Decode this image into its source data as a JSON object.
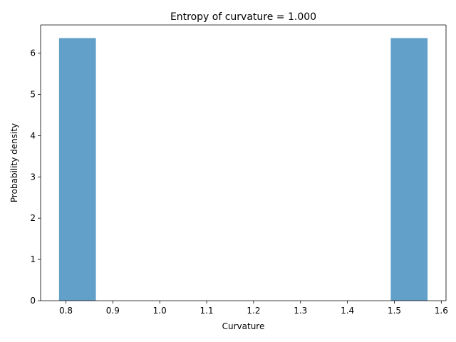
{
  "chart_data": {
    "type": "bar",
    "title": "Entropy of curvature = 1.000",
    "xlabel": "Curvature",
    "ylabel": "Probability density",
    "bins": [
      {
        "x0": 0.7854,
        "x1": 0.8639,
        "density": 6.366
      },
      {
        "x0": 0.8639,
        "x1": 0.9425,
        "density": 0
      },
      {
        "x0": 0.9425,
        "x1": 1.021,
        "density": 0
      },
      {
        "x0": 1.021,
        "x1": 1.0996,
        "density": 0
      },
      {
        "x0": 1.0996,
        "x1": 1.1781,
        "density": 0
      },
      {
        "x0": 1.1781,
        "x1": 1.2566,
        "density": 0
      },
      {
        "x0": 1.2566,
        "x1": 1.3352,
        "density": 0
      },
      {
        "x0": 1.3352,
        "x1": 1.4137,
        "density": 0
      },
      {
        "x0": 1.4137,
        "x1": 1.4923,
        "density": 0
      },
      {
        "x0": 1.4923,
        "x1": 1.5708,
        "density": 6.366
      }
    ],
    "xticks": [
      "0.8",
      "0.9",
      "1.0",
      "1.1",
      "1.2",
      "1.3",
      "1.4",
      "1.5",
      "1.6"
    ],
    "yticks": [
      "0",
      "1",
      "2",
      "3",
      "4",
      "5",
      "6"
    ],
    "xlim": [
      0.7461,
      1.6101
    ],
    "ylim": [
      0,
      6.684
    ],
    "grid": false,
    "colors": {
      "bar": "#1f77b4",
      "bar_opacity": 0.7
    }
  }
}
